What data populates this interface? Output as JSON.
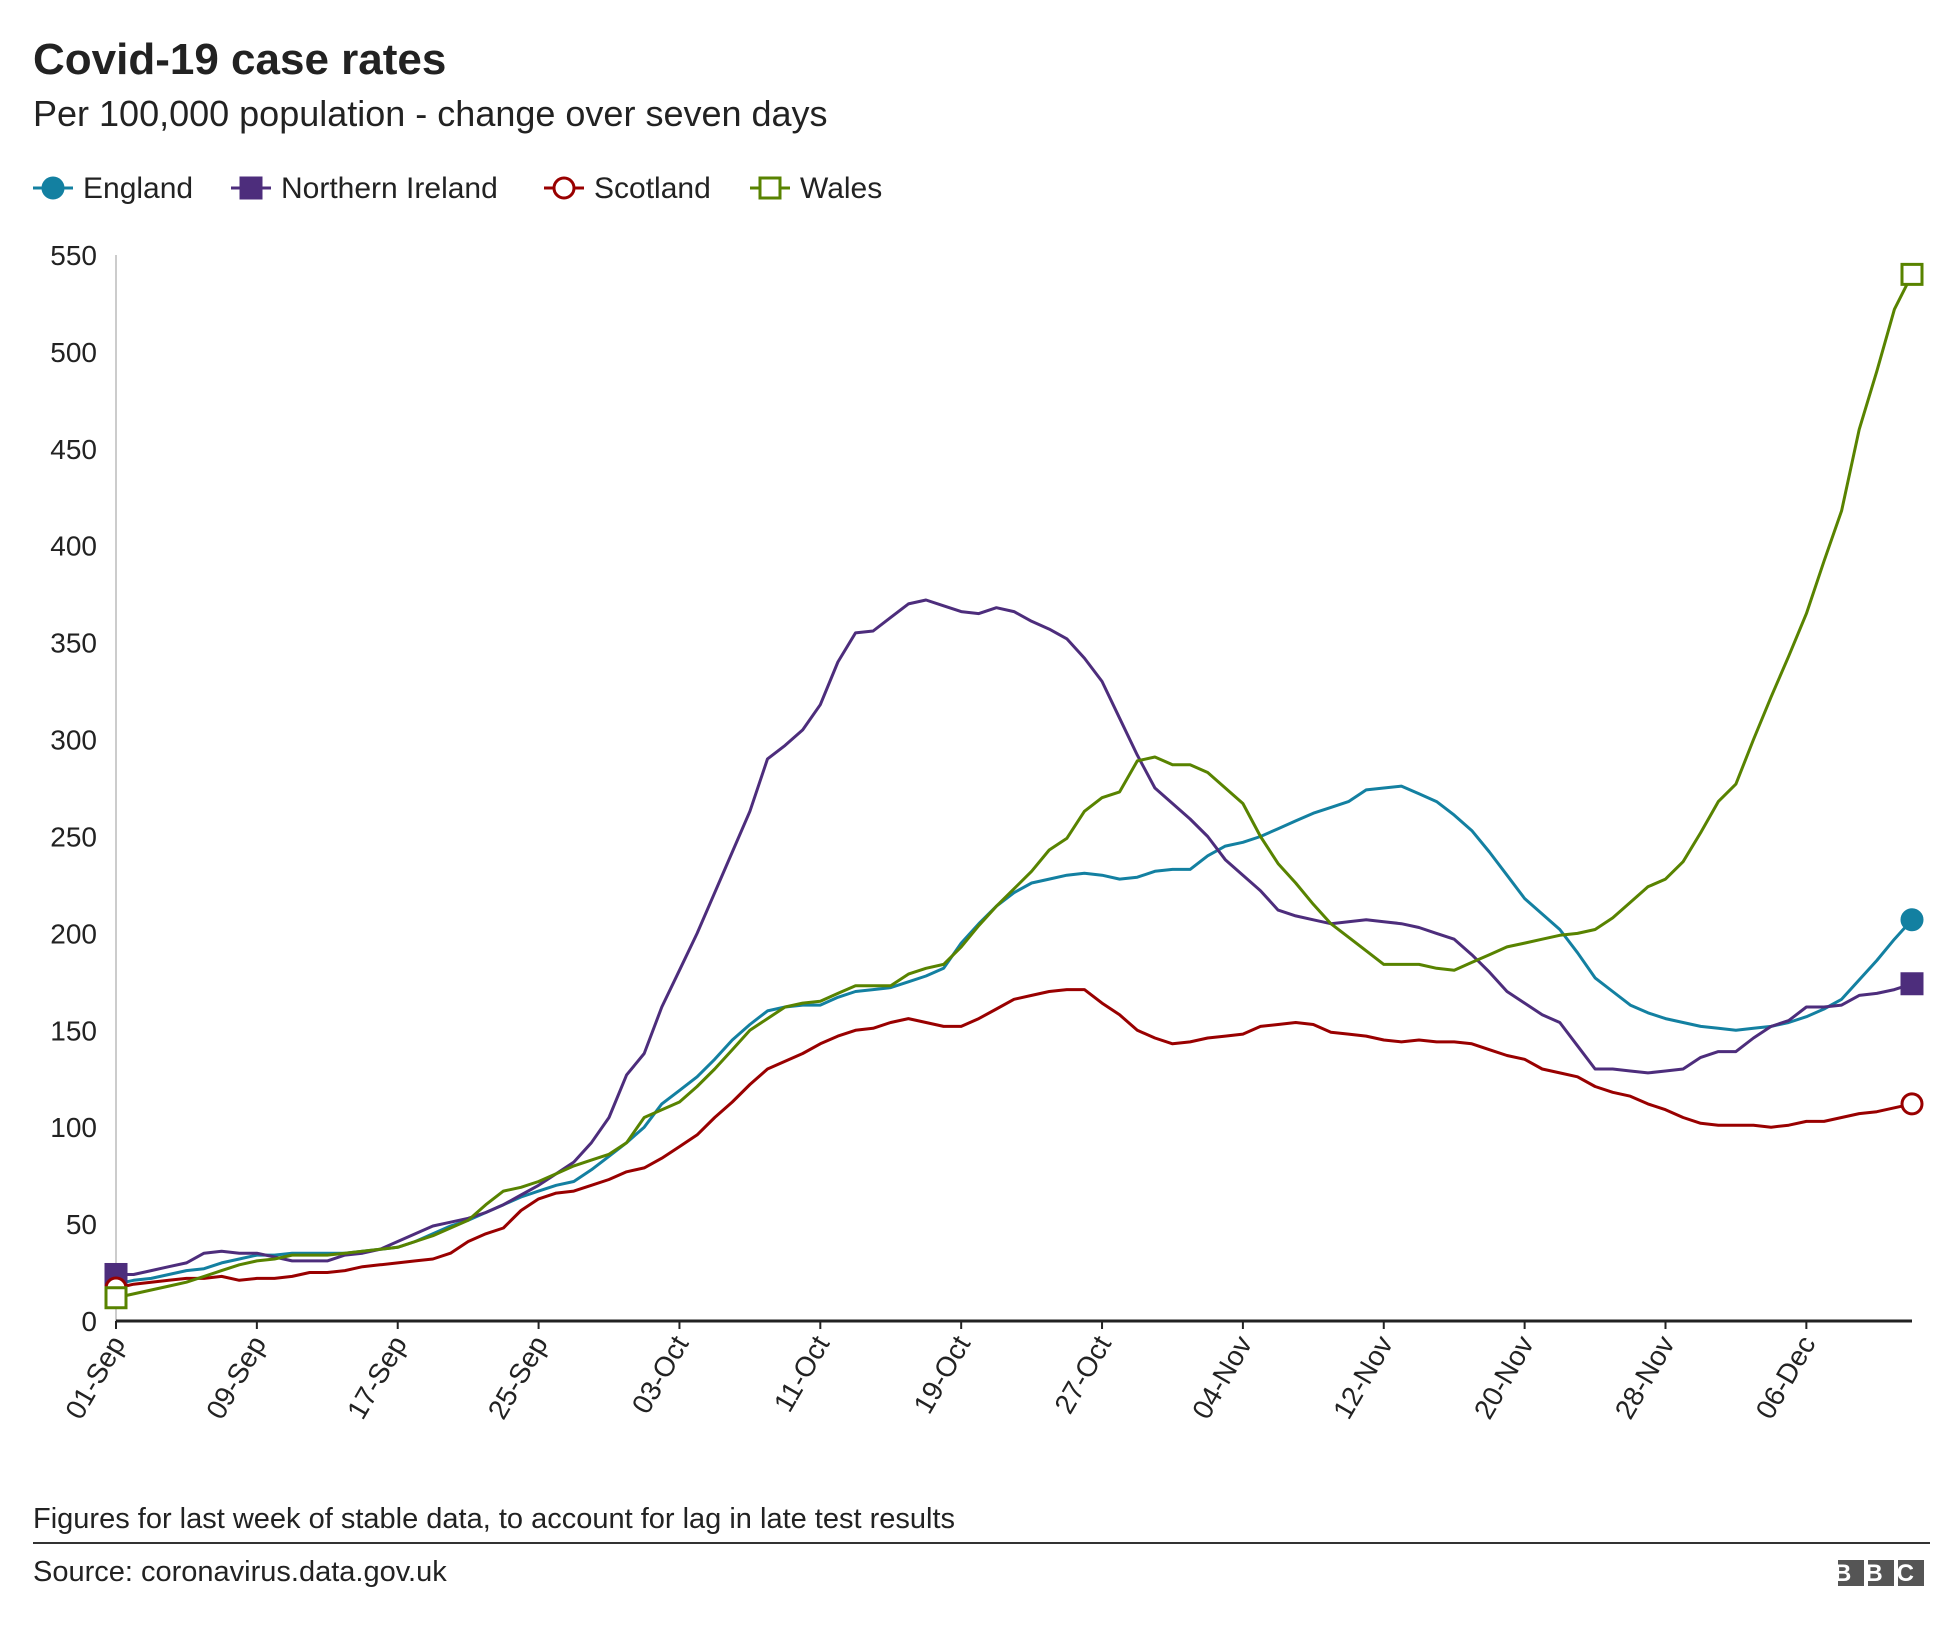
{
  "chart_data": {
    "type": "line",
    "title": "Covid-19 case rates",
    "subtitle": "Per 100,000 population - change over seven days",
    "note": "Figures for last week of stable data, to account for lag in late test results",
    "source": "Source: coronavirus.data.gov.uk",
    "logo": "BBC",
    "categories": [
      "01-Sep",
      null,
      null,
      null,
      null,
      null,
      null,
      null,
      "09-Sep",
      null,
      null,
      null,
      null,
      null,
      null,
      null,
      "17-Sep",
      null,
      null,
      null,
      null,
      null,
      null,
      null,
      "25-Sep",
      null,
      null,
      null,
      null,
      null,
      null,
      null,
      "03-Oct",
      null,
      null,
      null,
      null,
      null,
      null,
      null,
      "11-Oct",
      null,
      null,
      null,
      null,
      null,
      null,
      null,
      "19-Oct",
      null,
      null,
      null,
      null,
      null,
      null,
      null,
      "27-Oct",
      null,
      null,
      null,
      null,
      null,
      null,
      null,
      "04-Nov",
      null,
      null,
      null,
      null,
      null,
      null,
      null,
      "12-Nov",
      null,
      null,
      null,
      null,
      null,
      null,
      null,
      "20-Nov",
      null,
      null,
      null,
      null,
      null,
      null,
      null,
      "28-Nov",
      null,
      null,
      null,
      null,
      null,
      null,
      null,
      "06-Dec",
      null,
      null,
      null,
      null,
      null,
      null
    ],
    "series": [
      {
        "name": "England",
        "color": "#1380a1",
        "marker": "circle",
        "filled": true,
        "values": [
          19,
          21,
          22,
          24,
          26,
          27,
          30,
          32,
          34,
          34,
          35,
          35,
          35,
          35,
          36,
          37,
          38,
          41,
          45,
          49,
          52,
          56,
          60,
          64,
          67,
          70,
          72,
          78,
          85,
          92,
          100,
          112,
          119,
          126,
          135,
          145,
          153,
          160,
          162,
          163,
          163,
          167,
          170,
          171,
          172,
          175,
          178,
          182,
          195,
          205,
          214,
          221,
          226,
          228,
          230,
          231,
          230,
          228,
          229,
          232,
          233,
          233,
          240,
          245,
          247,
          250,
          254,
          258,
          262,
          265,
          268,
          274,
          275,
          276,
          272,
          268,
          261,
          253,
          242,
          230,
          218,
          210,
          202,
          190,
          177,
          170,
          163,
          159,
          156,
          154,
          152,
          151,
          150,
          151,
          152,
          154,
          157,
          161,
          166,
          176,
          186,
          197,
          207
        ]
      },
      {
        "name": "Northern Ireland",
        "color": "#4d2d7c",
        "marker": "square",
        "filled": true,
        "values": [
          24,
          24,
          26,
          28,
          30,
          35,
          36,
          35,
          35,
          33,
          31,
          31,
          31,
          34,
          35,
          37,
          41,
          45,
          49,
          51,
          53,
          56,
          60,
          65,
          70,
          76,
          82,
          92,
          105,
          127,
          138,
          162,
          181,
          200,
          221,
          242,
          263,
          290,
          297,
          305,
          318,
          340,
          355,
          356,
          363,
          370,
          372,
          369,
          366,
          365,
          368,
          366,
          361,
          357,
          352,
          342,
          330,
          311,
          292,
          275,
          267,
          259,
          250,
          238,
          230,
          222,
          212,
          209,
          207,
          205,
          206,
          207,
          206,
          205,
          203,
          200,
          197,
          189,
          180,
          170,
          164,
          158,
          154,
          142,
          130,
          130,
          129,
          128,
          129,
          130,
          136,
          139,
          139,
          146,
          152,
          155,
          162,
          162,
          163,
          168,
          169,
          171,
          174
        ]
      },
      {
        "name": "Scotland",
        "color": "#990000",
        "marker": "circle",
        "filled": false,
        "values": [
          17,
          19,
          20,
          21,
          22,
          22,
          23,
          21,
          22,
          22,
          23,
          25,
          25,
          26,
          28,
          29,
          30,
          31,
          32,
          35,
          41,
          45,
          48,
          57,
          63,
          66,
          67,
          70,
          73,
          77,
          79,
          84,
          90,
          96,
          105,
          113,
          122,
          130,
          134,
          138,
          143,
          147,
          150,
          151,
          154,
          156,
          154,
          152,
          152,
          156,
          161,
          166,
          168,
          170,
          171,
          171,
          164,
          158,
          150,
          146,
          143,
          144,
          146,
          147,
          148,
          152,
          153,
          154,
          153,
          149,
          148,
          147,
          145,
          144,
          145,
          144,
          144,
          143,
          140,
          137,
          135,
          130,
          128,
          126,
          121,
          118,
          116,
          112,
          109,
          105,
          102,
          101,
          101,
          101,
          100,
          101,
          103,
          103,
          105,
          107,
          108,
          110,
          112
        ]
      },
      {
        "name": "Wales",
        "color": "#588300",
        "marker": "square",
        "filled": false,
        "values": [
          12,
          14,
          16,
          18,
          20,
          23,
          26,
          29,
          31,
          32,
          34,
          34,
          34,
          35,
          36,
          37,
          38,
          41,
          44,
          48,
          52,
          60,
          67,
          69,
          72,
          76,
          80,
          83,
          86,
          92,
          105,
          109,
          113,
          121,
          130,
          140,
          150,
          156,
          162,
          164,
          165,
          169,
          173,
          173,
          173,
          179,
          182,
          184,
          193,
          204,
          214,
          223,
          232,
          243,
          249,
          263,
          270,
          273,
          289,
          291,
          287,
          287,
          283,
          275,
          267,
          250,
          236,
          226,
          215,
          205,
          198,
          191,
          184,
          184,
          184,
          182,
          181,
          185,
          189,
          193,
          195,
          197,
          199,
          200,
          202,
          208,
          216,
          224,
          228,
          237,
          252,
          268,
          277,
          300,
          322,
          343,
          365,
          392,
          418,
          460,
          490,
          522,
          540
        ]
      }
    ],
    "ylim": [
      0,
      550
    ],
    "yticks": [
      0,
      50,
      100,
      150,
      200,
      250,
      300,
      350,
      400,
      450,
      500,
      550
    ],
    "grid": false
  }
}
